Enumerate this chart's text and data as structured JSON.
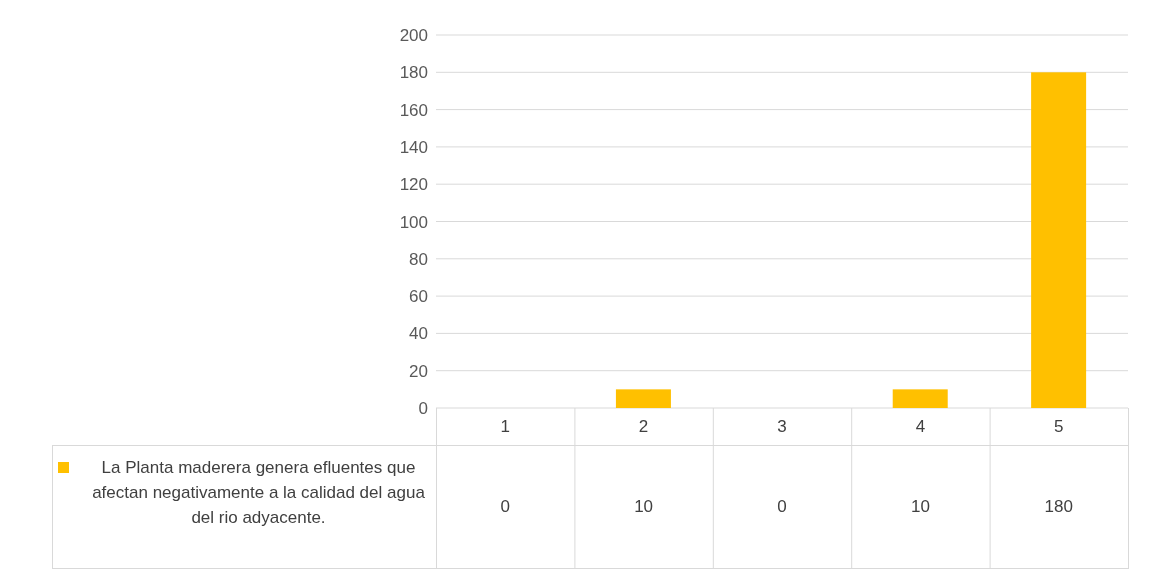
{
  "chart_data": {
    "type": "bar",
    "categories": [
      "1",
      "2",
      "3",
      "4",
      "5"
    ],
    "series": [
      {
        "name": "La Planta maderera genera efluentes que afectan negativamente a la calidad del agua del rio adyacente.",
        "color": "#ffc000",
        "values": [
          0,
          10,
          0,
          10,
          180
        ]
      }
    ],
    "ylim": [
      0,
      200
    ],
    "yticks": [
      0,
      20,
      40,
      60,
      80,
      100,
      120,
      140,
      160,
      180,
      200
    ],
    "grid": "y",
    "legend": "bottom left",
    "data_labels": true
  }
}
